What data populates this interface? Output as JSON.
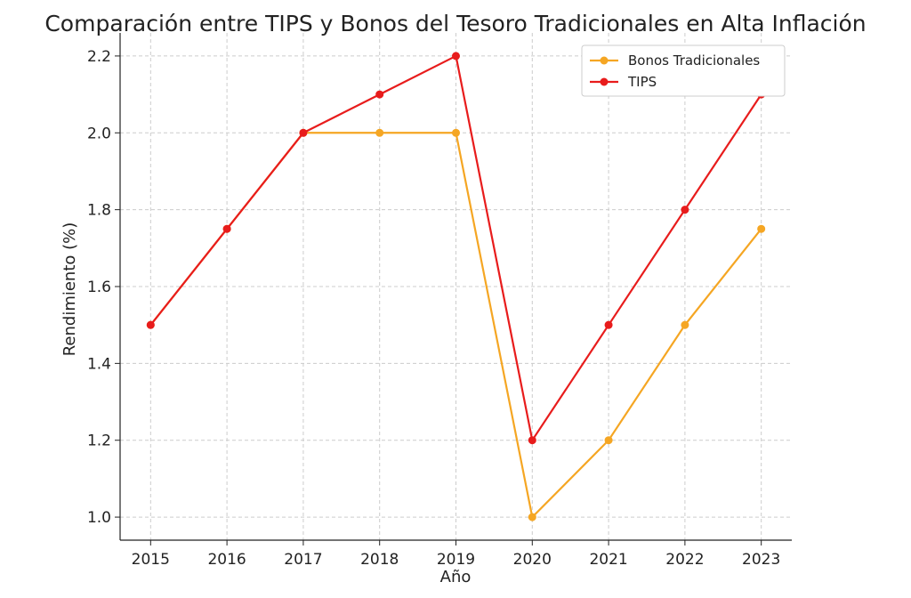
{
  "chart_data": {
    "type": "line",
    "title": "Comparación entre TIPS y Bonos del Tesoro Tradicionales en Alta Inflación",
    "xlabel": "Año",
    "ylabel": "Rendimiento (%)",
    "x": [
      2015,
      2016,
      2017,
      2018,
      2019,
      2020,
      2021,
      2022,
      2023
    ],
    "x_tick_labels": [
      "2015",
      "2016",
      "2017",
      "2018",
      "2019",
      "2020",
      "2021",
      "2022",
      "2023"
    ],
    "y_tick_values": [
      1.0,
      1.2,
      1.4,
      1.6,
      1.8,
      2.0,
      2.2
    ],
    "y_tick_labels": [
      "1.0",
      "1.2",
      "1.4",
      "1.6",
      "1.8",
      "2.0",
      "2.2"
    ],
    "xlim": [
      2014.6,
      2023.4
    ],
    "ylim": [
      0.94,
      2.26
    ],
    "grid": true,
    "legend_position": "top-right",
    "series": [
      {
        "name": "Bonos Tradicionales",
        "color": "#f5a623",
        "values": [
          1.5,
          1.75,
          2.0,
          2.0,
          2.0,
          1.0,
          1.2,
          1.5,
          1.75
        ]
      },
      {
        "name": "TIPS",
        "color": "#e81c1c",
        "values": [
          1.5,
          1.75,
          2.0,
          2.1,
          2.2,
          1.2,
          1.5,
          1.8,
          2.1
        ]
      }
    ]
  }
}
